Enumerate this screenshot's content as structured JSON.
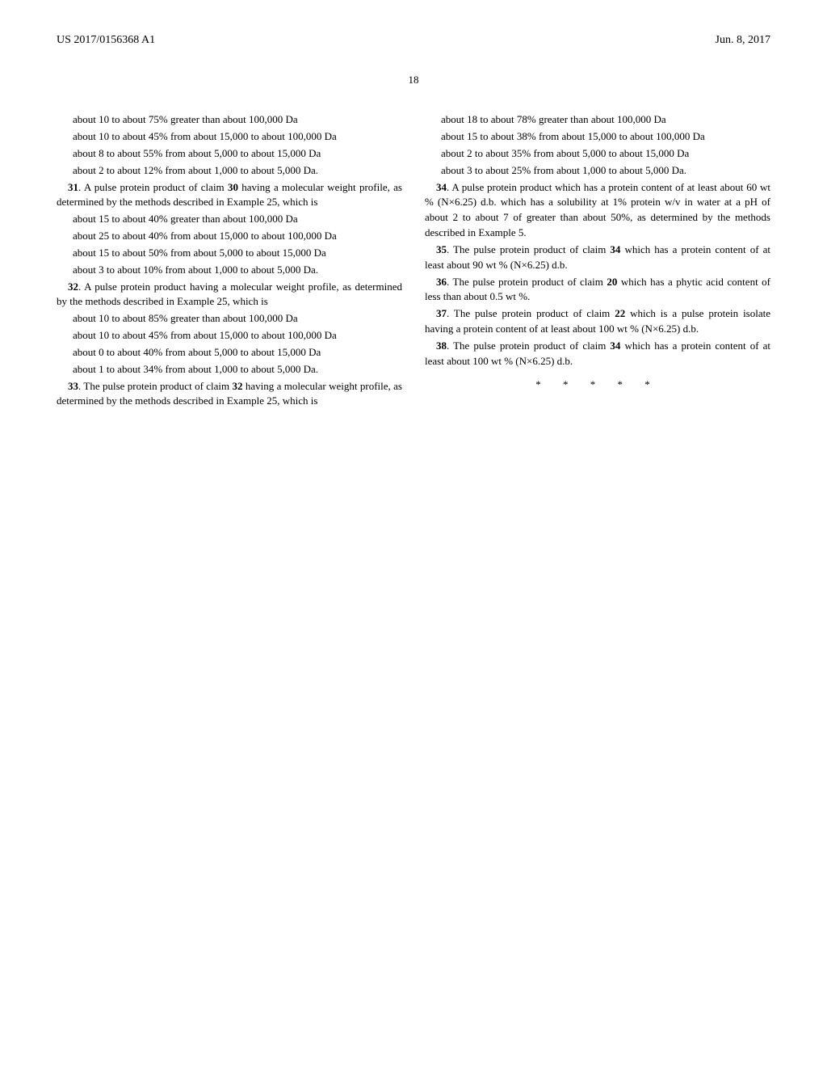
{
  "header": {
    "docNumber": "US 2017/0156368 A1",
    "date": "Jun. 8, 2017"
  },
  "pageNumber": "18",
  "claims": {
    "c30_line1": "about 10 to about 75% greater than about 100,000 Da",
    "c30_line2": "about 10 to about 45% from about 15,000 to about 100,000 Da",
    "c30_line3": "about 8 to about 55% from about 5,000 to about 15,000 Da",
    "c30_line4": "about 2 to about 12% from about 1,000 to about 5,000 Da.",
    "c31_num": "31",
    "c31_text_a": ". A pulse protein product of claim ",
    "c31_ref": "30",
    "c31_text_b": " having a molecular weight profile, as determined by the methods described in Example 25, which is",
    "c31_line1": "about 15 to about 40% greater than about 100,000 Da",
    "c31_line2": "about 25 to about 40% from about 15,000 to about 100,000 Da",
    "c31_line3": "about 15 to about 50% from about 5,000 to about 15,000 Da",
    "c31_line4": "about 3 to about 10% from about 1,000 to about 5,000 Da.",
    "c32_num": "32",
    "c32_text": ". A pulse protein product having a molecular weight profile, as determined by the methods described in Example 25, which is",
    "c32_line1": "about 10 to about 85% greater than about 100,000 Da",
    "c32_line2": "about 10 to about 45% from about 15,000 to about 100,000 Da",
    "c32_line3": "about 0 to about 40% from about 5,000 to about 15,000 Da",
    "c32_line4": "about 1 to about 34% from about 1,000 to about 5,000 Da.",
    "c33_num": "33",
    "c33_text_a": ". The pulse protein product of claim ",
    "c33_ref": "32",
    "c33_text_b": " having a molecular weight profile, as determined by the methods described in Example 25, which is",
    "c33_line1": "about 18 to about 78% greater than about 100,000 Da",
    "c33_line2": "about 15 to about 38% from about 15,000 to about 100,000 Da",
    "c33_line3": "about 2 to about 35% from about 5,000 to about 15,000 Da",
    "c33_line4": "about 3 to about 25% from about 1,000 to about 5,000 Da.",
    "c34_num": "34",
    "c34_text": ". A pulse protein product which has a protein content of at least about 60 wt % (N×6.25) d.b. which has a solubility at 1% protein w/v in water at a pH of about 2 to about 7 of greater than about 50%, as determined by the methods described in Example 5.",
    "c35_num": "35",
    "c35_text_a": ". The pulse protein product of claim ",
    "c35_ref": "34",
    "c35_text_b": " which has a protein content of at least about 90 wt % (N×6.25) d.b.",
    "c36_num": "36",
    "c36_text_a": ". The pulse protein product of claim ",
    "c36_ref": "20",
    "c36_text_b": " which has a phytic acid content of less than about 0.5 wt %.",
    "c37_num": "37",
    "c37_text_a": ". The pulse protein product of claim ",
    "c37_ref": "22",
    "c37_text_b": " which is a pulse protein isolate having a protein content of at least about 100 wt % (N×6.25) d.b.",
    "c38_num": "38",
    "c38_text_a": ". The pulse protein product of claim ",
    "c38_ref": "34",
    "c38_text_b": " which has a protein content of at least about 100 wt % (N×6.25) d.b."
  },
  "asterisks": "* * * * *"
}
